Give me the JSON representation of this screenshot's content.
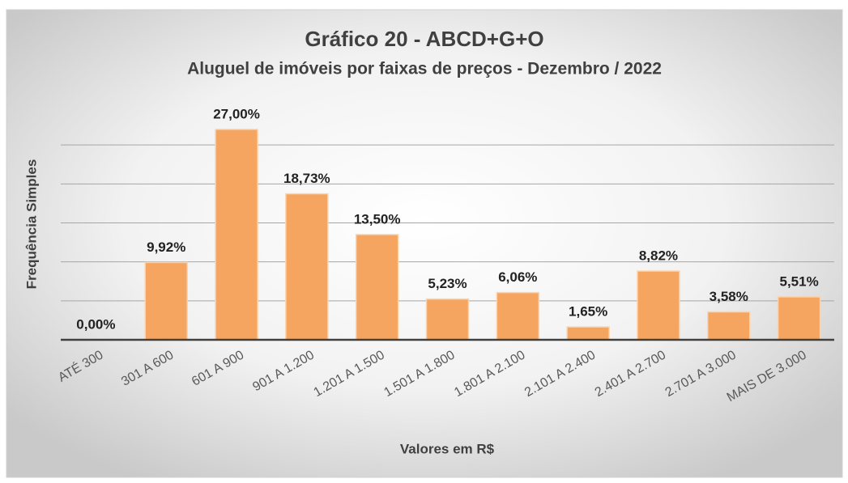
{
  "chart_data": {
    "type": "bar",
    "title": "Gráfico 20 - ABCD+G+O",
    "subtitle": "Aluguel de imóveis por faixas de preços - Dezembro / 2022",
    "x_label": "Valores em R$",
    "y_label": "Frequência Simples",
    "categories": [
      "ATÉ 300",
      "301 A 600",
      "601 A 900",
      "901 A 1.200",
      "1.201 A 1.500",
      "1.501 A 1.800",
      "1.801 A 2.100",
      "2.101 A 2.400",
      "2.401 A 2.700",
      "2.701 A 3.000",
      "MAIS DE 3.000"
    ],
    "values": [
      0,
      9.92,
      27,
      18.73,
      13.5,
      5.23,
      6.06,
      1.65,
      8.82,
      3.58,
      5.51
    ],
    "value_labels": [
      "0,00%",
      "9,92%",
      "27,00%",
      "18,73%",
      "13,50%",
      "5,23%",
      "6,06%",
      "1,65%",
      "8,82%",
      "3,58%",
      "5,51%"
    ],
    "color": "#f5a560",
    "ylim": [
      0,
      30
    ],
    "yticks": [
      0,
      5,
      10,
      15,
      20,
      25
    ],
    "grid": true
  }
}
